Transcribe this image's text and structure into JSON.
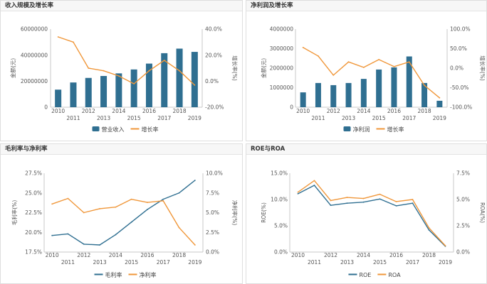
{
  "chart_data": [
    {
      "type": "bar",
      "title": "收入规模及增长率",
      "categories": [
        "2010",
        "2011",
        "2012",
        "2013",
        "2014",
        "2015",
        "2016",
        "2017",
        "2018",
        "2019"
      ],
      "series": [
        {
          "name": "营业收入",
          "type": "bar",
          "axis": "left",
          "color": "#2f6f91",
          "values": [
            13500000,
            19000000,
            22500000,
            24000000,
            26000000,
            29000000,
            33500000,
            41500000,
            45000000,
            42500000
          ]
        },
        {
          "name": "增长率",
          "type": "line",
          "axis": "right",
          "color": "#f0973a",
          "values": [
            34,
            30,
            10,
            8,
            4,
            -2,
            8,
            16,
            8,
            -3
          ]
        }
      ],
      "y_left": {
        "label": "金额(元)",
        "range": [
          0,
          60000000
        ],
        "ticks": [
          0,
          20000000,
          40000000,
          60000000
        ],
        "tick_labels": [
          "0",
          "20000000",
          "40000000",
          "60000000"
        ]
      },
      "y_right": {
        "label": "增长率(%)",
        "range": [
          -20,
          40
        ],
        "ticks": [
          -20,
          0,
          20,
          40
        ],
        "tick_labels": [
          "-20.0%",
          "0.0%",
          "20.0%",
          "40.0%"
        ]
      },
      "grid": false,
      "legend": "bottom"
    },
    {
      "type": "bar",
      "title": "净利润及增长率",
      "categories": [
        "2010",
        "2011",
        "2012",
        "2013",
        "2014",
        "2015",
        "2016",
        "2017",
        "2018",
        "2019"
      ],
      "series": [
        {
          "name": "净利润",
          "type": "bar",
          "axis": "left",
          "color": "#2f6f91",
          "values": [
            760000,
            1240000,
            1130000,
            1240000,
            1450000,
            1930000,
            2040000,
            2600000,
            1240000,
            330000
          ]
        },
        {
          "name": "增长率",
          "type": "line",
          "axis": "right",
          "color": "#f0973a",
          "values": [
            53,
            31,
            -18,
            16,
            2,
            22,
            4,
            16,
            -44,
            -76
          ]
        }
      ],
      "y_left": {
        "label": "金额(元)",
        "range": [
          0,
          4000000
        ],
        "ticks": [
          0,
          1000000,
          2000000,
          3000000,
          4000000
        ],
        "tick_labels": [
          "0",
          "1000000",
          "2000000",
          "3000000",
          "4000000"
        ]
      },
      "y_right": {
        "label": "增长率(%)",
        "range": [
          -100,
          100
        ],
        "ticks": [
          -100,
          -50,
          0,
          50,
          100
        ],
        "tick_labels": [
          "-100.0%",
          "-50.0%",
          "0.0%",
          "50.0%",
          "100.0%"
        ]
      },
      "grid": false,
      "legend": "bottom"
    },
    {
      "type": "line",
      "title": "毛利率与净利率",
      "categories": [
        "2010",
        "2011",
        "2012",
        "2013",
        "2014",
        "2015",
        "2016",
        "2017",
        "2018",
        "2019"
      ],
      "series": [
        {
          "name": "毛利率",
          "type": "line",
          "axis": "left",
          "color": "#2f6f91",
          "values": [
            19.6,
            19.8,
            18.5,
            18.4,
            19.7,
            21.3,
            22.9,
            24.2,
            25.0,
            26.6
          ]
        },
        {
          "name": "净利率",
          "type": "line",
          "axis": "right",
          "color": "#f0973a",
          "values": [
            6.1,
            6.8,
            5.0,
            5.5,
            5.7,
            6.7,
            6.3,
            6.5,
            3.1,
            0.9
          ]
        }
      ],
      "y_left": {
        "label": "毛利率(%)",
        "range": [
          17.5,
          27.5
        ],
        "ticks": [
          17.5,
          20,
          22.5,
          25,
          27.5
        ],
        "tick_labels": [
          "17.5%",
          "20.0%",
          "22.5%",
          "25.0%",
          "27.5%"
        ]
      },
      "y_right": {
        "label": "净利率(%)",
        "range": [
          0,
          10
        ],
        "ticks": [
          0,
          2.5,
          5,
          7.5,
          10
        ],
        "tick_labels": [
          "0.0%",
          "2.5%",
          "5.0%",
          "7.5%",
          "10.0%"
        ]
      },
      "grid": false,
      "legend": "bottom"
    },
    {
      "type": "line",
      "title": "ROE与ROA",
      "categories": [
        "2010",
        "2011",
        "2012",
        "2013",
        "2014",
        "2015",
        "2016",
        "2017",
        "2018",
        "2019"
      ],
      "series": [
        {
          "name": "ROE",
          "type": "line",
          "axis": "left",
          "color": "#2f6f91",
          "values": [
            11.1,
            12.7,
            8.9,
            9.3,
            9.5,
            10.1,
            8.8,
            9.3,
            4.2,
            1.1
          ]
        },
        {
          "name": "ROA",
          "type": "line",
          "axis": "right",
          "color": "#f0973a",
          "values": [
            5.7,
            6.8,
            4.9,
            5.2,
            5.1,
            5.5,
            4.8,
            5.0,
            2.3,
            0.6
          ]
        }
      ],
      "y_left": {
        "label": "ROE(%)",
        "range": [
          0,
          15
        ],
        "ticks": [
          0,
          5,
          10,
          15
        ],
        "tick_labels": [
          "0.0%",
          "5.0%",
          "10.0%",
          "15.0%"
        ]
      },
      "y_right": {
        "label": "ROA(%)",
        "range": [
          0,
          7.5
        ],
        "ticks": [
          0,
          2.5,
          5,
          7.5
        ],
        "tick_labels": [
          "0.0%",
          "2.5%",
          "5.0%",
          "7.5%"
        ]
      },
      "grid": false,
      "legend": "bottom"
    }
  ]
}
